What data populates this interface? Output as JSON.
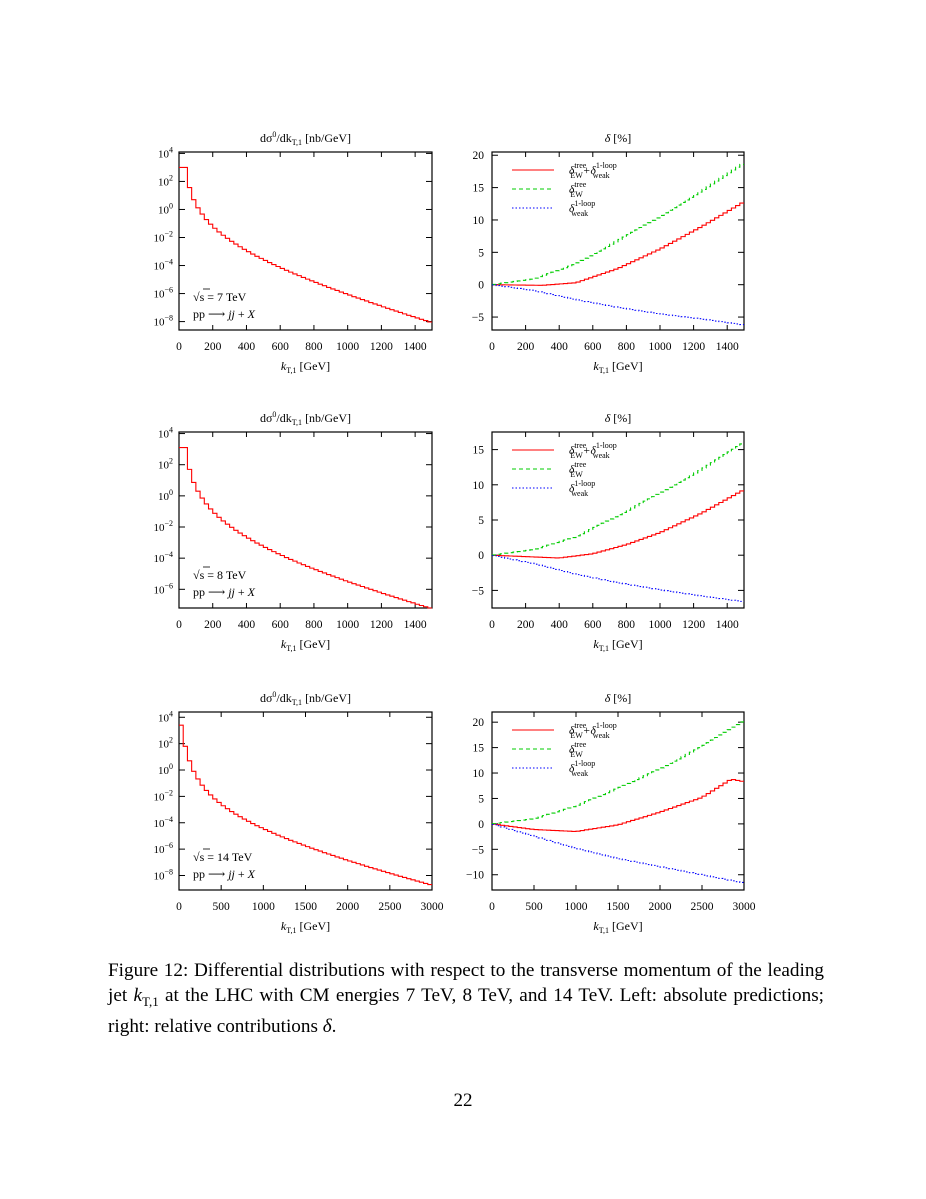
{
  "chart_data": [
    {
      "type": "line",
      "mode": "log",
      "title": "dσ0/dkT,1 [nb/GeV]",
      "title_parts": [
        "dσ",
        "0",
        "/dk",
        "T,1",
        " [nb/GeV]"
      ],
      "xlabel": "kT,1 [GeV]",
      "xlabel_parts": [
        "k",
        "T,1",
        " [GeV]"
      ],
      "x_range": [
        0,
        1500
      ],
      "x_ticks": [
        0,
        200,
        400,
        600,
        800,
        1000,
        1200,
        1400
      ],
      "log_range": [
        -8.6,
        4.1
      ],
      "y_ticks_exp": [
        4,
        2,
        0,
        -2,
        -4,
        -6,
        -8
      ],
      "y_tick_base": "10",
      "annotations": [
        "√s = 7 TeV",
        "pp ⟶ jj + X"
      ],
      "annotation_parts": {
        "sqrt": "√",
        "s_energy": "s = 7 TeV",
        "pp": "pp ⟶ ",
        "jj": "jj",
        "plus": " + ",
        "X": "X"
      },
      "bins": {
        "width": 25,
        "values_log10": [
          3.0,
          3.0,
          1.56,
          0.7,
          0.12,
          -0.33,
          -0.72,
          -1.05,
          -1.34,
          -1.6,
          -1.84,
          -2.06,
          -2.27,
          -2.47,
          -2.66,
          -2.84,
          -3.01,
          -3.18,
          -3.34,
          -3.49,
          -3.64,
          -3.79,
          -3.93,
          -4.07,
          -4.21,
          -4.34,
          -4.47,
          -4.6,
          -4.72,
          -4.85,
          -4.97,
          -5.09,
          -5.21,
          -5.33,
          -5.44,
          -5.56,
          -5.67,
          -5.78,
          -5.89,
          -6.0,
          -6.11,
          -6.22,
          -6.32,
          -6.43,
          -6.53,
          -6.64,
          -6.74,
          -6.84,
          -6.95,
          -7.05,
          -7.15,
          -7.25,
          -7.35,
          -7.45,
          -7.55,
          -7.64,
          -7.74,
          -7.84,
          -7.93,
          -8.03
        ]
      },
      "color": "#ff0000"
    },
    {
      "type": "line",
      "mode": "delta",
      "title": "δ [%]",
      "title_parts": [
        "δ",
        " [%]"
      ],
      "xlabel": "kT,1 [GeV]",
      "xlabel_parts": [
        "k",
        "T,1",
        " [GeV]"
      ],
      "x_range": [
        0,
        1500
      ],
      "x_ticks": [
        0,
        200,
        400,
        600,
        800,
        1000,
        1200,
        1400
      ],
      "ylim": [
        -7,
        20.5
      ],
      "y_ticks": [
        20,
        15,
        10,
        5,
        0,
        -5
      ],
      "legend": [
        {
          "text": "δtreeEW+δ1-loopweak",
          "parts": [
            "δ",
            "tree",
            "EW",
            "+δ",
            "1-loop",
            "weak"
          ],
          "color": "#ff0000",
          "dash": ""
        },
        {
          "text": "δtreeEW",
          "parts": [
            "δ",
            "tree",
            "EW"
          ],
          "color": "#00cc00",
          "dash": "4,3"
        },
        {
          "text": "δ1-loopweak",
          "parts": [
            "δ",
            "1-loop",
            "weak"
          ],
          "color": "#0000ff",
          "dash": "1.5,2"
        }
      ],
      "series": [
        {
          "name": "δtreeEW+δ1-loopweak",
          "color": "#ff0000",
          "dash": "",
          "x": [
            0,
            300,
            500,
            750,
            1000,
            1250,
            1500
          ],
          "y": [
            0,
            -0.1,
            0.3,
            2.5,
            5.5,
            9.0,
            12.8
          ]
        },
        {
          "name": "δtreeEW",
          "color": "#00cc00",
          "dash": "4,3",
          "x": [
            0,
            250,
            500,
            750,
            1000,
            1250,
            1500
          ],
          "y": [
            0,
            0.9,
            3.2,
            6.8,
            10.5,
            14.5,
            18.8
          ]
        },
        {
          "name": "δ1-loopweak",
          "color": "#0000ff",
          "dash": "1.5,2",
          "x": [
            0,
            250,
            500,
            750,
            1000,
            1250,
            1500
          ],
          "y": [
            0,
            -0.9,
            -2.3,
            -3.5,
            -4.5,
            -5.3,
            -6.2
          ]
        }
      ]
    },
    {
      "type": "line",
      "mode": "log",
      "title": "dσ0/dkT,1 [nb/GeV]",
      "title_parts": [
        "dσ",
        "0",
        "/dk",
        "T,1",
        " [nb/GeV]"
      ],
      "xlabel": "kT,1 [GeV]",
      "xlabel_parts": [
        "k",
        "T,1",
        " [GeV]"
      ],
      "x_range": [
        0,
        1500
      ],
      "x_ticks": [
        0,
        200,
        400,
        600,
        800,
        1000,
        1200,
        1400
      ],
      "log_range": [
        -7.2,
        4.1
      ],
      "y_ticks_exp": [
        4,
        2,
        0,
        -2,
        -4,
        -6
      ],
      "y_tick_base": "10",
      "annotations": [
        "√s = 8 TeV",
        "pp ⟶ jj + X"
      ],
      "annotation_parts": {
        "sqrt": "√",
        "s_energy": "s = 8 TeV",
        "pp": "pp ⟶ ",
        "jj": "jj",
        "plus": " + ",
        "X": "X"
      },
      "bins": {
        "width": 25,
        "values_log10": [
          3.1,
          3.1,
          1.7,
          0.86,
          0.3,
          -0.14,
          -0.52,
          -0.84,
          -1.12,
          -1.38,
          -1.61,
          -1.82,
          -2.02,
          -2.21,
          -2.39,
          -2.56,
          -2.72,
          -2.88,
          -3.03,
          -3.17,
          -3.31,
          -3.45,
          -3.58,
          -3.71,
          -3.83,
          -3.96,
          -4.08,
          -4.19,
          -4.31,
          -4.42,
          -4.53,
          -4.64,
          -4.74,
          -4.85,
          -4.95,
          -5.05,
          -5.15,
          -5.25,
          -5.35,
          -5.45,
          -5.54,
          -5.64,
          -5.73,
          -5.82,
          -5.91,
          -6.0,
          -6.09,
          -6.18,
          -6.27,
          -6.36,
          -6.44,
          -6.53,
          -6.62,
          -6.7,
          -6.79,
          -6.87,
          -6.96,
          -7.04,
          -7.12,
          -7.2
        ]
      },
      "color": "#ff0000"
    },
    {
      "type": "line",
      "mode": "delta",
      "title": "δ [%]",
      "title_parts": [
        "δ",
        " [%]"
      ],
      "xlabel": "kT,1 [GeV]",
      "xlabel_parts": [
        "k",
        "T,1",
        " [GeV]"
      ],
      "x_range": [
        0,
        1500
      ],
      "x_ticks": [
        0,
        200,
        400,
        600,
        800,
        1000,
        1200,
        1400
      ],
      "ylim": [
        -7.5,
        17.5
      ],
      "y_ticks": [
        15,
        10,
        5,
        0,
        -5
      ],
      "legend": [
        {
          "text": "δtreeEW+δ1-loopweak",
          "parts": [
            "δ",
            "tree",
            "EW",
            "+δ",
            "1-loop",
            "weak"
          ],
          "color": "#ff0000",
          "dash": ""
        },
        {
          "text": "δtreeEW",
          "parts": [
            "δ",
            "tree",
            "EW"
          ],
          "color": "#00cc00",
          "dash": "4,3"
        },
        {
          "text": "δ1-loopweak",
          "parts": [
            "δ",
            "1-loop",
            "weak"
          ],
          "color": "#0000ff",
          "dash": "1.5,2"
        }
      ],
      "series": [
        {
          "name": "δtreeEW+δ1-loopweak",
          "color": "#ff0000",
          "dash": "",
          "x": [
            0,
            200,
            400,
            600,
            800,
            1000,
            1250,
            1500
          ],
          "y": [
            0,
            -0.2,
            -0.4,
            0.2,
            1.5,
            3.2,
            6.0,
            9.3
          ]
        },
        {
          "name": "δtreeEW",
          "color": "#00cc00",
          "dash": "4,3",
          "x": [
            0,
            250,
            500,
            750,
            1000,
            1250,
            1500
          ],
          "y": [
            0,
            0.8,
            2.6,
            5.6,
            8.8,
            12.2,
            16.0
          ]
        },
        {
          "name": "δ1-loopweak",
          "color": "#0000ff",
          "dash": "1.5,2",
          "x": [
            0,
            250,
            500,
            750,
            1000,
            1250,
            1500
          ],
          "y": [
            0,
            -1.2,
            -2.7,
            -3.9,
            -4.9,
            -5.8,
            -6.6
          ]
        }
      ]
    },
    {
      "type": "line",
      "mode": "log",
      "title": "dσ0/dkT,1 [nb/GeV]",
      "title_parts": [
        "dσ",
        "0",
        "/dk",
        "T,1",
        " [nb/GeV]"
      ],
      "xlabel": "kT,1 [GeV]",
      "xlabel_parts": [
        "k",
        "T,1",
        " [GeV]"
      ],
      "x_range": [
        0,
        3000
      ],
      "x_ticks": [
        0,
        500,
        1000,
        1500,
        2000,
        2500,
        3000
      ],
      "log_range": [
        -9.1,
        4.4
      ],
      "y_ticks_exp": [
        4,
        2,
        0,
        -2,
        -4,
        -6,
        -8
      ],
      "y_tick_base": "10",
      "annotations": [
        "√s = 14 TeV",
        "pp ⟶ jj + X"
      ],
      "annotation_parts": {
        "sqrt": "√",
        "s_energy": "s = 14 TeV",
        "pp": "pp ⟶ ",
        "jj": "jj",
        "plus": " + ",
        "X": "X"
      },
      "bins": {
        "width": 50,
        "values_log10": [
          3.4,
          1.8,
          0.7,
          -0.1,
          -0.68,
          -1.15,
          -1.55,
          -1.89,
          -2.19,
          -2.46,
          -2.71,
          -2.93,
          -3.15,
          -3.35,
          -3.54,
          -3.72,
          -3.89,
          -4.06,
          -4.22,
          -4.37,
          -4.52,
          -4.66,
          -4.8,
          -4.94,
          -5.07,
          -5.2,
          -5.33,
          -5.45,
          -5.57,
          -5.69,
          -5.81,
          -5.93,
          -6.04,
          -6.15,
          -6.27,
          -6.37,
          -6.48,
          -6.59,
          -6.69,
          -6.8,
          -6.9,
          -7.0,
          -7.1,
          -7.2,
          -7.3,
          -7.4,
          -7.49,
          -7.59,
          -7.68,
          -7.78,
          -7.87,
          -7.97,
          -8.06,
          -8.15,
          -8.24,
          -8.33,
          -8.42,
          -8.51,
          -8.6,
          -8.69
        ]
      },
      "color": "#ff0000"
    },
    {
      "type": "line",
      "mode": "delta",
      "title": "δ [%]",
      "title_parts": [
        "δ",
        " [%]"
      ],
      "xlabel": "kT,1 [GeV]",
      "xlabel_parts": [
        "k",
        "T,1",
        " [GeV]"
      ],
      "x_range": [
        0,
        3000
      ],
      "x_ticks": [
        0,
        500,
        1000,
        1500,
        2000,
        2500,
        3000
      ],
      "ylim": [
        -13,
        22
      ],
      "y_ticks": [
        20,
        15,
        10,
        5,
        0,
        -5,
        -10
      ],
      "legend": [
        {
          "text": "δtreeEW+δ1-loopweak",
          "parts": [
            "δ",
            "tree",
            "EW",
            "+δ",
            "1-loop",
            "weak"
          ],
          "color": "#ff0000",
          "dash": ""
        },
        {
          "text": "δtreeEW",
          "parts": [
            "δ",
            "tree",
            "EW"
          ],
          "color": "#00cc00",
          "dash": "4,3"
        },
        {
          "text": "δ1-loopweak",
          "parts": [
            "δ",
            "1-loop",
            "weak"
          ],
          "color": "#0000ff",
          "dash": "1.5,2"
        }
      ],
      "series": [
        {
          "name": "δtreeEW+δ1-loopweak",
          "color": "#ff0000",
          "dash": "",
          "x": [
            0,
            500,
            1000,
            1500,
            2000,
            2500,
            2850,
            3000
          ],
          "y": [
            0,
            -1.1,
            -1.5,
            -0.2,
            2.3,
            5.2,
            8.8,
            8.3
          ]
        },
        {
          "name": "δtreeEW",
          "color": "#00cc00",
          "dash": "4,3",
          "x": [
            0,
            500,
            1000,
            1500,
            2000,
            2500,
            3000
          ],
          "y": [
            0,
            1.0,
            3.5,
            7.0,
            10.8,
            15.2,
            20.3
          ]
        },
        {
          "name": "δ1-loopweak",
          "color": "#0000ff",
          "dash": "1.5,2",
          "x": [
            0,
            500,
            1000,
            1500,
            2000,
            2500,
            3000
          ],
          "y": [
            0,
            -2.4,
            -4.8,
            -6.8,
            -8.4,
            -10.0,
            -11.6
          ]
        }
      ]
    }
  ],
  "caption": {
    "label": "Figure 12:",
    "text": "Differential distributions with respect to the transverse momentum of the leading jet kT,1 at the LHC with CM energies 7 TeV, 8 TeV, and 14 TeV. Left: absolute predictions; right: relative contributions δ.",
    "pre": " Differential distributions with respect to the transverse momentum of the leading jet ",
    "sym": "k",
    "sub": "T,1",
    "mid": " at the LHC with CM energies 7 TeV, 8 TeV, and 14 TeV. Left: absolute predictions; right: relative contributions ",
    "delta": "δ",
    "end": "."
  },
  "page_number": "22"
}
